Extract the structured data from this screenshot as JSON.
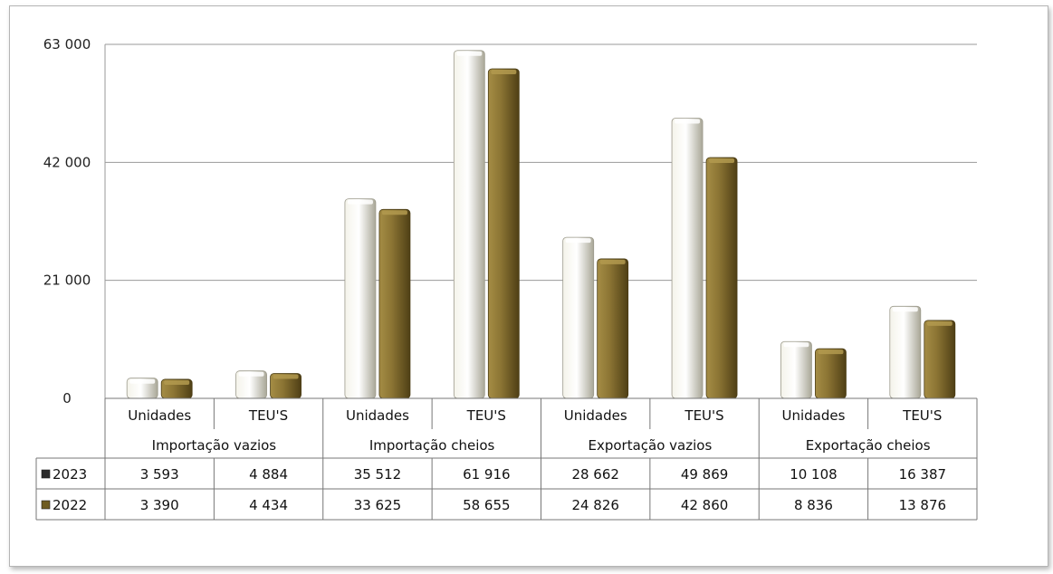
{
  "chart_data": {
    "type": "bar",
    "groups": [
      "Importação vazios",
      "Importação cheios",
      "Exportação vazios",
      "Exportação cheios"
    ],
    "categories": [
      "Unidades",
      "TEU'S",
      "Unidades",
      "TEU'S",
      "Unidades",
      "TEU'S",
      "Unidades",
      "TEU'S"
    ],
    "series": [
      {
        "name": "2023",
        "values": [
          3593,
          4884,
          35512,
          61916,
          28662,
          49869,
          10108,
          16387
        ],
        "labels": [
          "3 593",
          "4 884",
          "35 512",
          "61 916",
          "28 662",
          "49 869",
          "10 108",
          "16 387"
        ],
        "color": "#e4e2d4"
      },
      {
        "name": "2022",
        "values": [
          3390,
          4434,
          33625,
          58655,
          24826,
          42860,
          8836,
          13876
        ],
        "labels": [
          "3 390",
          "4 434",
          "33 625",
          "58 655",
          "24 826",
          "42 860",
          "8 836",
          "13 876"
        ],
        "color": "#8a7433"
      }
    ],
    "yticks": [
      0,
      21000,
      42000,
      63000
    ],
    "ytick_labels": [
      "0",
      "21 000",
      "42 000",
      "63 000"
    ],
    "ylim": [
      0,
      63000
    ],
    "grid": true,
    "legend": "data-table",
    "title": "",
    "xlabel": "",
    "ylabel": ""
  }
}
